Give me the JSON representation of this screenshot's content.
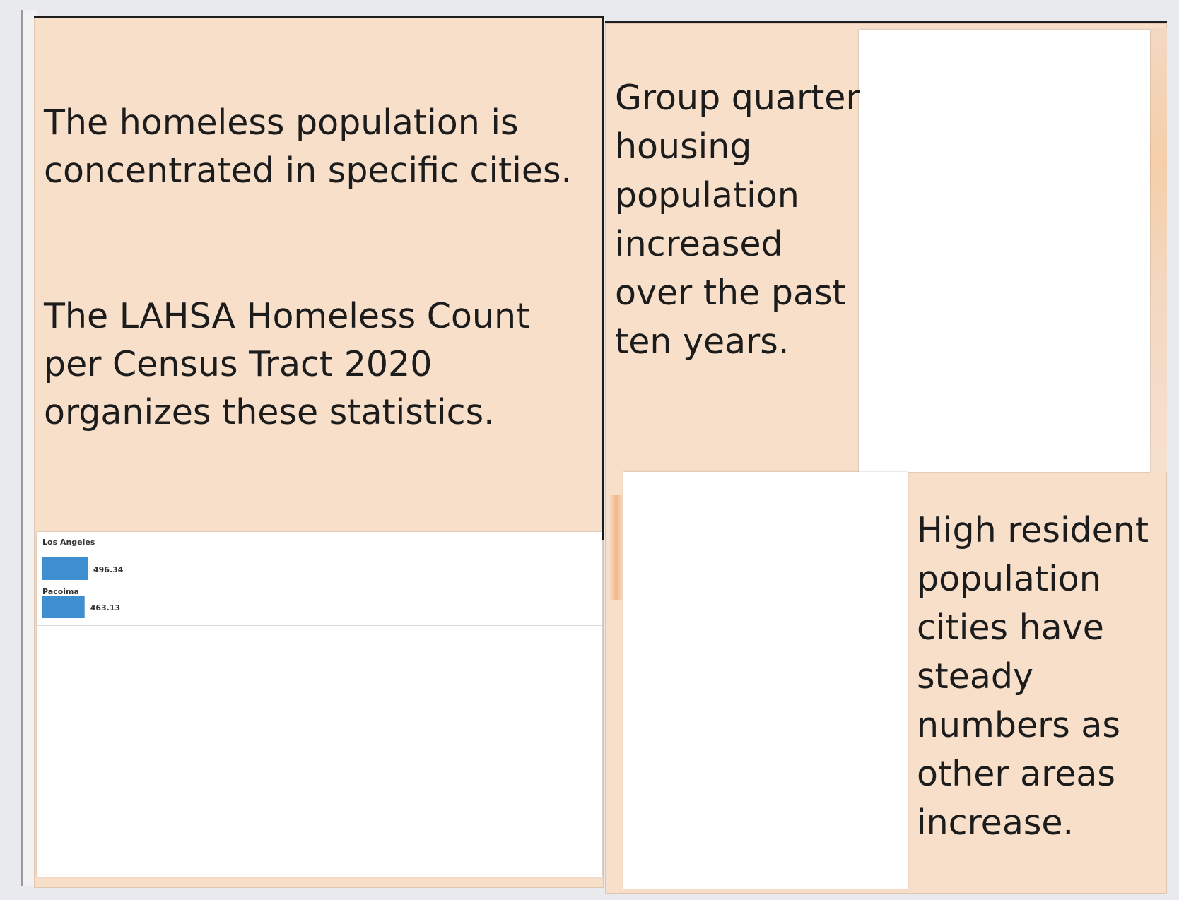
{
  "left_page": {
    "paragraph_1": "The homeless population is concentrated in specific cities.",
    "paragraph_2": "The LAHSA Homeless Count per Census Tract 2020 organizes these statistics."
  },
  "right_page": {
    "paragraph_1": "Group quarter housing population increased over the past ten years.",
    "paragraph_2": "High resident population cities have steady numbers as other areas increase."
  },
  "chart_data": {
    "type": "bar",
    "orientation": "horizontal",
    "header": "Los Angeles",
    "categories": [
      "",
      "Pacoima"
    ],
    "values": [
      496.34,
      463.13
    ],
    "value_labels": [
      "496.34",
      "463.13"
    ],
    "bar_color": "#3f8fd0"
  },
  "colors": {
    "page_background": "#f7dfca",
    "text": "#1c1c1c"
  }
}
